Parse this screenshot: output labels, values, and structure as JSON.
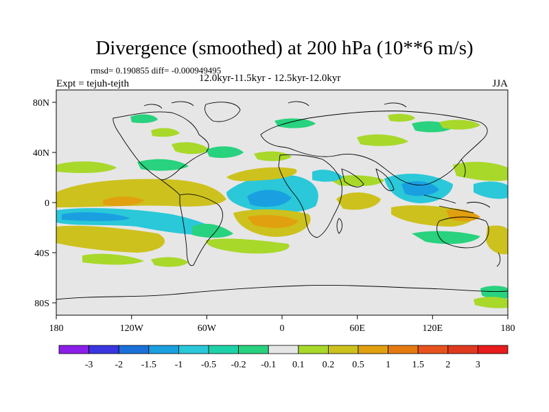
{
  "title": "Divergence (smoothed) at 200 hPa (10**6 m/s)",
  "stats_line": "rmsd= 0.190855 diff= -0.000949495",
  "time_range": "12.0kyr-11.5kyr - 12.5kyr-12.0kyr",
  "experiment": "Expt = tejuh-tejth",
  "season": "JJA",
  "chart_data": {
    "type": "map",
    "projection": "cylindrical equidistant",
    "variable": "Divergence (smoothed) at 200 hPa",
    "units": "10**6 m/s",
    "lon_range": [
      -180,
      180
    ],
    "lat_range": [
      -90,
      90
    ],
    "x_ticks": [
      {
        "lon": -180,
        "label": "180"
      },
      {
        "lon": -120,
        "label": "120W"
      },
      {
        "lon": -60,
        "label": "60W"
      },
      {
        "lon": 0,
        "label": "0"
      },
      {
        "lon": 60,
        "label": "60E"
      },
      {
        "lon": 120,
        "label": "120E"
      },
      {
        "lon": 180,
        "label": "180"
      }
    ],
    "y_ticks": [
      {
        "lat": 80,
        "label": "80N"
      },
      {
        "lat": 40,
        "label": "40N"
      },
      {
        "lat": 0,
        "label": "0"
      },
      {
        "lat": -40,
        "label": "40S"
      },
      {
        "lat": -80,
        "label": "80S"
      }
    ],
    "colorbar": {
      "levels": [
        "-3",
        "-2",
        "-1.5",
        "-1",
        "-0.5",
        "-0.2",
        "-0.1",
        "0.1",
        "0.2",
        "0.5",
        "1",
        "1.5",
        "2",
        "3"
      ],
      "colors": [
        "#8b1ee8",
        "#3a35e0",
        "#1a70d8",
        "#1aa0e0",
        "#2ac8d8",
        "#1ed2a8",
        "#28d27e",
        "#e6e6e6",
        "#a8d82a",
        "#cdc11e",
        "#e1a010",
        "#e57a10",
        "#e7521c",
        "#e03a1e",
        "#e81c1c"
      ]
    },
    "features": [
      {
        "name": "tropical Atlantic divergence minimum",
        "lon": -8,
        "lat": 5,
        "value": -1.0
      },
      {
        "name": "Maritime Continent / SE Asia divergence minimum",
        "lon": 100,
        "lat": 8,
        "value": -0.8
      },
      {
        "name": "central Pacific positive band",
        "lon": -140,
        "lat": 0,
        "value": 1.0
      },
      {
        "name": "southern tropical Atlantic positive",
        "lon": -10,
        "lat": -12,
        "value": 1.0
      },
      {
        "name": "Arabian Sea positive",
        "lon": 60,
        "lat": 0,
        "value": 0.6
      },
      {
        "name": "South Pacific negative band",
        "lon": -140,
        "lat": -20,
        "value": -0.4
      }
    ]
  }
}
